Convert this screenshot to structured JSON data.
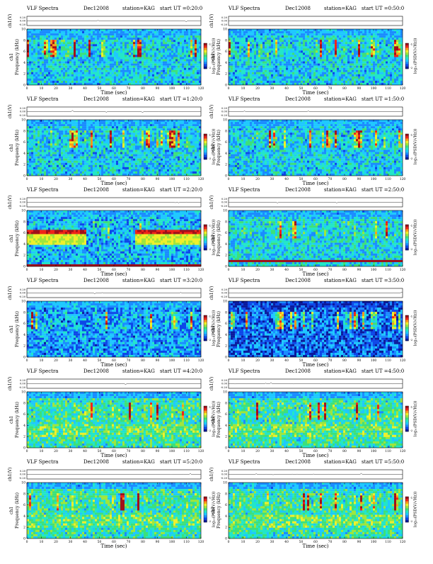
{
  "colorscale": [
    "#0a1a9c",
    "#0d47e8",
    "#1a8cff",
    "#1ec8ff",
    "#22e6c8",
    "#3de07a",
    "#9ee63c",
    "#eef02a",
    "#ff9a1a",
    "#f02418",
    "#a0101a"
  ],
  "chart_data": [
    {
      "type": "heatmap",
      "header": {
        "name": "VLF Spectra",
        "date": "Dec12008",
        "station": "station=KAG",
        "start": "start  UT =0:20:0"
      },
      "ch_label": "ch1(V)",
      "ch_ticks": [
        "0.20",
        "0.00",
        "-0.20"
      ],
      "ylabel": "Frequency (kHz)",
      "ylabel_side": "ch1",
      "yticks": [
        "10",
        "8",
        "6",
        "4",
        "2",
        "0"
      ],
      "xlabel": "Time  (sec)",
      "xticks": [
        "0",
        "10",
        "20",
        "30",
        "40",
        "50",
        "60",
        "70",
        "80",
        "90",
        "100",
        "110",
        "120"
      ],
      "xlim": [
        0,
        120
      ],
      "ylim": [
        0,
        10
      ],
      "colorbar_label": "log₁₀(PSD(V/√Hz))",
      "colorbar_ticks": [
        "-1",
        "-2"
      ],
      "regime": "bursty"
    },
    {
      "type": "heatmap",
      "header": {
        "name": "VLF Spectra",
        "date": "Dec12008",
        "station": "station=KAG",
        "start": "start  UT =0:50:0"
      },
      "ch_label": "ch1(V)",
      "ch_ticks": [
        "0.20",
        "0.00",
        "-0.20"
      ],
      "ylabel": "Frequency (kHz)",
      "ylabel_side": "ch1",
      "yticks": [
        "10",
        "8",
        "6",
        "4",
        "2",
        "0"
      ],
      "xlabel": "Time  (sec)",
      "xticks": [
        "0",
        "10",
        "20",
        "30",
        "40",
        "50",
        "60",
        "70",
        "80",
        "90",
        "100",
        "110",
        "120"
      ],
      "xlim": [
        0,
        120
      ],
      "ylim": [
        0,
        10
      ],
      "colorbar_label": "log₁₀(PSD(V/√Hz))",
      "colorbar_ticks": [
        "-1",
        "-2"
      ],
      "regime": "bursty"
    },
    {
      "type": "heatmap",
      "header": {
        "name": "VLF Spectra",
        "date": "Dec12008",
        "station": "station=KAG",
        "start": "start  UT =1:20:0"
      },
      "ch_label": "ch1(V)",
      "ch_ticks": [
        "0.20",
        "0.00",
        "-0.20"
      ],
      "ylabel": "Frequency (kHz)",
      "ylabel_side": "ch1",
      "yticks": [
        "10",
        "8",
        "6",
        "4",
        "2",
        "0"
      ],
      "xlabel": "Time  (sec)",
      "xticks": [
        "0",
        "10",
        "20",
        "30",
        "40",
        "50",
        "60",
        "70",
        "80",
        "90",
        "100",
        "110",
        "120"
      ],
      "xlim": [
        0,
        120
      ],
      "ylim": [
        0,
        10
      ],
      "colorbar_label": "log₁₀(PSD(V/√Hz))",
      "colorbar_ticks": [
        "-1",
        "-2"
      ],
      "regime": "bursty"
    },
    {
      "type": "heatmap",
      "header": {
        "name": "VLF Spectra",
        "date": "Dec12008",
        "station": "station=KAG",
        "start": "start  UT =1:50:0"
      },
      "ch_label": "ch1(V)",
      "ch_ticks": [
        "0.20",
        "0.00",
        "-0.20"
      ],
      "ylabel": "Frequency (kHz)",
      "ylabel_side": "ch1",
      "yticks": [
        "10",
        "8",
        "6",
        "4",
        "2",
        "0"
      ],
      "xlabel": "Time  (sec)",
      "xticks": [
        "0",
        "10",
        "20",
        "30",
        "40",
        "50",
        "60",
        "70",
        "80",
        "90",
        "100",
        "110",
        "120"
      ],
      "xlim": [
        0,
        120
      ],
      "ylim": [
        0,
        10
      ],
      "colorbar_label": "log₁₀(PSD(V/√Hz))",
      "colorbar_ticks": [
        "-1",
        "-2"
      ],
      "regime": "bursty"
    },
    {
      "type": "heatmap",
      "header": {
        "name": "VLF Spectra",
        "date": "Dec12008",
        "station": "station=KAG",
        "start": "start  UT =2:20:0"
      },
      "ch_label": "ch1(V)",
      "ch_ticks": [
        "0.20",
        "0.00",
        "-0.20"
      ],
      "ylabel": "Frequency (kHz)",
      "ylabel_side": "ch1",
      "yticks": [
        "10",
        "8",
        "6",
        "4",
        "2",
        "0"
      ],
      "xlabel": "Time  (sec)",
      "xticks": [
        "0",
        "10",
        "20",
        "30",
        "40",
        "50",
        "60",
        "70",
        "80",
        "90",
        "100",
        "110",
        "120"
      ],
      "xlim": [
        0,
        120
      ],
      "ylim": [
        0,
        10
      ],
      "colorbar_label": "log₁₀(PSD(V/√Hz))",
      "colorbar_ticks": [
        "-1",
        "-2"
      ],
      "regime": "banded"
    },
    {
      "type": "heatmap",
      "header": {
        "name": "VLF Spectra",
        "date": "Dec12008",
        "station": "station=KAG",
        "start": "start  UT =2:50:0"
      },
      "ch_label": "ch1(V)",
      "ch_ticks": [
        "0.20",
        "0.00",
        "-0.20"
      ],
      "ylabel": "Frequency (kHz)",
      "ylabel_side": "ch1",
      "yticks": [
        "10",
        "8",
        "6",
        "4",
        "2",
        "0"
      ],
      "xlabel": "Time  (sec)",
      "xticks": [
        "0",
        "10",
        "20",
        "30",
        "40",
        "50",
        "60",
        "70",
        "80",
        "90",
        "100",
        "110",
        "120"
      ],
      "xlim": [
        0,
        120
      ],
      "ylim": [
        0,
        10
      ],
      "colorbar_label": "log₁₀(PSD(V/√Hz))",
      "colorbar_ticks": [
        "-1",
        "-2"
      ],
      "regime": "lowline"
    },
    {
      "type": "heatmap",
      "header": {
        "name": "VLF Spectra",
        "date": "Dec12008",
        "station": "station=KAG",
        "start": "start  UT =3:20:0"
      },
      "ch_label": "ch1(V)",
      "ch_ticks": [
        "0.20",
        "0.00",
        "-0.20"
      ],
      "ylabel": "Frequency (kHz)",
      "ylabel_side": "ch1",
      "yticks": [
        "10",
        "8",
        "6",
        "4",
        "2",
        "0"
      ],
      "xlabel": "Time  (sec)",
      "xticks": [
        "0",
        "10",
        "20",
        "30",
        "40",
        "50",
        "60",
        "70",
        "80",
        "90",
        "100",
        "110",
        "120"
      ],
      "xlim": [
        0,
        120
      ],
      "ylim": [
        0,
        10
      ],
      "colorbar_label": "log₁₀(PSD(V/√Hz))",
      "colorbar_ticks": [
        "-1",
        "-2"
      ],
      "regime": "quiet"
    },
    {
      "type": "heatmap",
      "header": {
        "name": "VLF Spectra",
        "date": "Dec12008",
        "station": "station=KAG",
        "start": "start  UT =3:50:0"
      },
      "ch_label": "ch1(V)",
      "ch_ticks": [
        "0.20",
        "0.00",
        "-0.20"
      ],
      "ylabel": "Frequency (kHz)",
      "ylabel_side": "ch1",
      "yticks": [
        "10",
        "8",
        "6",
        "4",
        "2",
        "0"
      ],
      "xlabel": "Time  (sec)",
      "xticks": [
        "0",
        "10",
        "20",
        "30",
        "40",
        "50",
        "60",
        "70",
        "80",
        "90",
        "100",
        "110",
        "120"
      ],
      "xlim": [
        0,
        120
      ],
      "ylim": [
        0,
        10
      ],
      "colorbar_label": "log₁₀(PSD(V/√Hz))",
      "colorbar_ticks": [
        "-1",
        "-2"
      ],
      "regime": "dark"
    },
    {
      "type": "heatmap",
      "header": {
        "name": "VLF Spectra",
        "date": "Dec12008",
        "station": "station=KAG",
        "start": "start  UT =4:20:0"
      },
      "ch_label": "ch1(V)",
      "ch_ticks": [
        "0.20",
        "0.00",
        "-0.20"
      ],
      "ylabel": "Frequency (kHz)",
      "ylabel_side": "ch1",
      "yticks": [
        "10",
        "8",
        "6",
        "4",
        "2",
        "0"
      ],
      "xlabel": "Time  (sec)",
      "xticks": [
        "0",
        "10",
        "20",
        "30",
        "40",
        "50",
        "60",
        "70",
        "80",
        "90",
        "100",
        "110",
        "120"
      ],
      "xlim": [
        0,
        120
      ],
      "ylim": [
        0,
        10
      ],
      "colorbar_label": "log₁₀(PSD(V/√Hz))",
      "colorbar_ticks": [
        "-1",
        "-2"
      ],
      "regime": "green"
    },
    {
      "type": "heatmap",
      "header": {
        "name": "VLF Spectra",
        "date": "Dec12008",
        "station": "station=KAG",
        "start": "start  UT =4:50:0"
      },
      "ch_label": "ch1(V)",
      "ch_ticks": [
        "0.20",
        "0.00",
        "-0.20"
      ],
      "ylabel": "Frequency (kHz)",
      "ylabel_side": "ch1",
      "yticks": [
        "10",
        "8",
        "6",
        "4",
        "2",
        "0"
      ],
      "xlabel": "Time  (sec)",
      "xticks": [
        "0",
        "10",
        "20",
        "30",
        "40",
        "50",
        "60",
        "70",
        "80",
        "90",
        "100",
        "110",
        "120"
      ],
      "xlim": [
        0,
        120
      ],
      "ylim": [
        0,
        10
      ],
      "colorbar_label": "log₁₀(PSD(V/√Hz))",
      "colorbar_ticks": [
        "-1",
        "-2"
      ],
      "regime": "green"
    },
    {
      "type": "heatmap",
      "header": {
        "name": "VLF Spectra",
        "date": "Dec12008",
        "station": "station=KAG",
        "start": "start  UT =5:20:0"
      },
      "ch_label": "ch1(V)",
      "ch_ticks": [
        "0.20",
        "0.00",
        "-0.20"
      ],
      "ylabel": "Frequency (kHz)",
      "ylabel_side": "ch1",
      "yticks": [
        "10",
        "8",
        "6",
        "4",
        "2",
        "0"
      ],
      "xlabel": "Time  (sec)",
      "xticks": [
        "0",
        "10",
        "20",
        "30",
        "40",
        "50",
        "60",
        "70",
        "80",
        "90",
        "100",
        "110",
        "120"
      ],
      "xlim": [
        0,
        120
      ],
      "ylim": [
        0,
        10
      ],
      "colorbar_label": "log₁₀(PSD(V/√Hz))",
      "colorbar_ticks": [
        "-1",
        "-2"
      ],
      "regime": "green"
    },
    {
      "type": "heatmap",
      "header": {
        "name": "VLF Spectra",
        "date": "Dec12008",
        "station": "station=KAG",
        "start": "start  UT =5:50:0"
      },
      "ch_label": "ch1(V)",
      "ch_ticks": [
        "0.20",
        "0.00",
        "-0.20"
      ],
      "ylabel": "Frequency (kHz)",
      "ylabel_side": "ch1",
      "yticks": [
        "10",
        "8",
        "6",
        "4",
        "2",
        "0"
      ],
      "xlabel": "Time  (sec)",
      "xticks": [
        "0",
        "10",
        "20",
        "30",
        "40",
        "50",
        "60",
        "70",
        "80",
        "90",
        "100",
        "110",
        "120"
      ],
      "xlim": [
        0,
        120
      ],
      "ylim": [
        0,
        10
      ],
      "colorbar_label": "log₁₀(PSD(V/√Hz))",
      "colorbar_ticks": [
        "-1",
        "-2"
      ],
      "regime": "green"
    }
  ]
}
